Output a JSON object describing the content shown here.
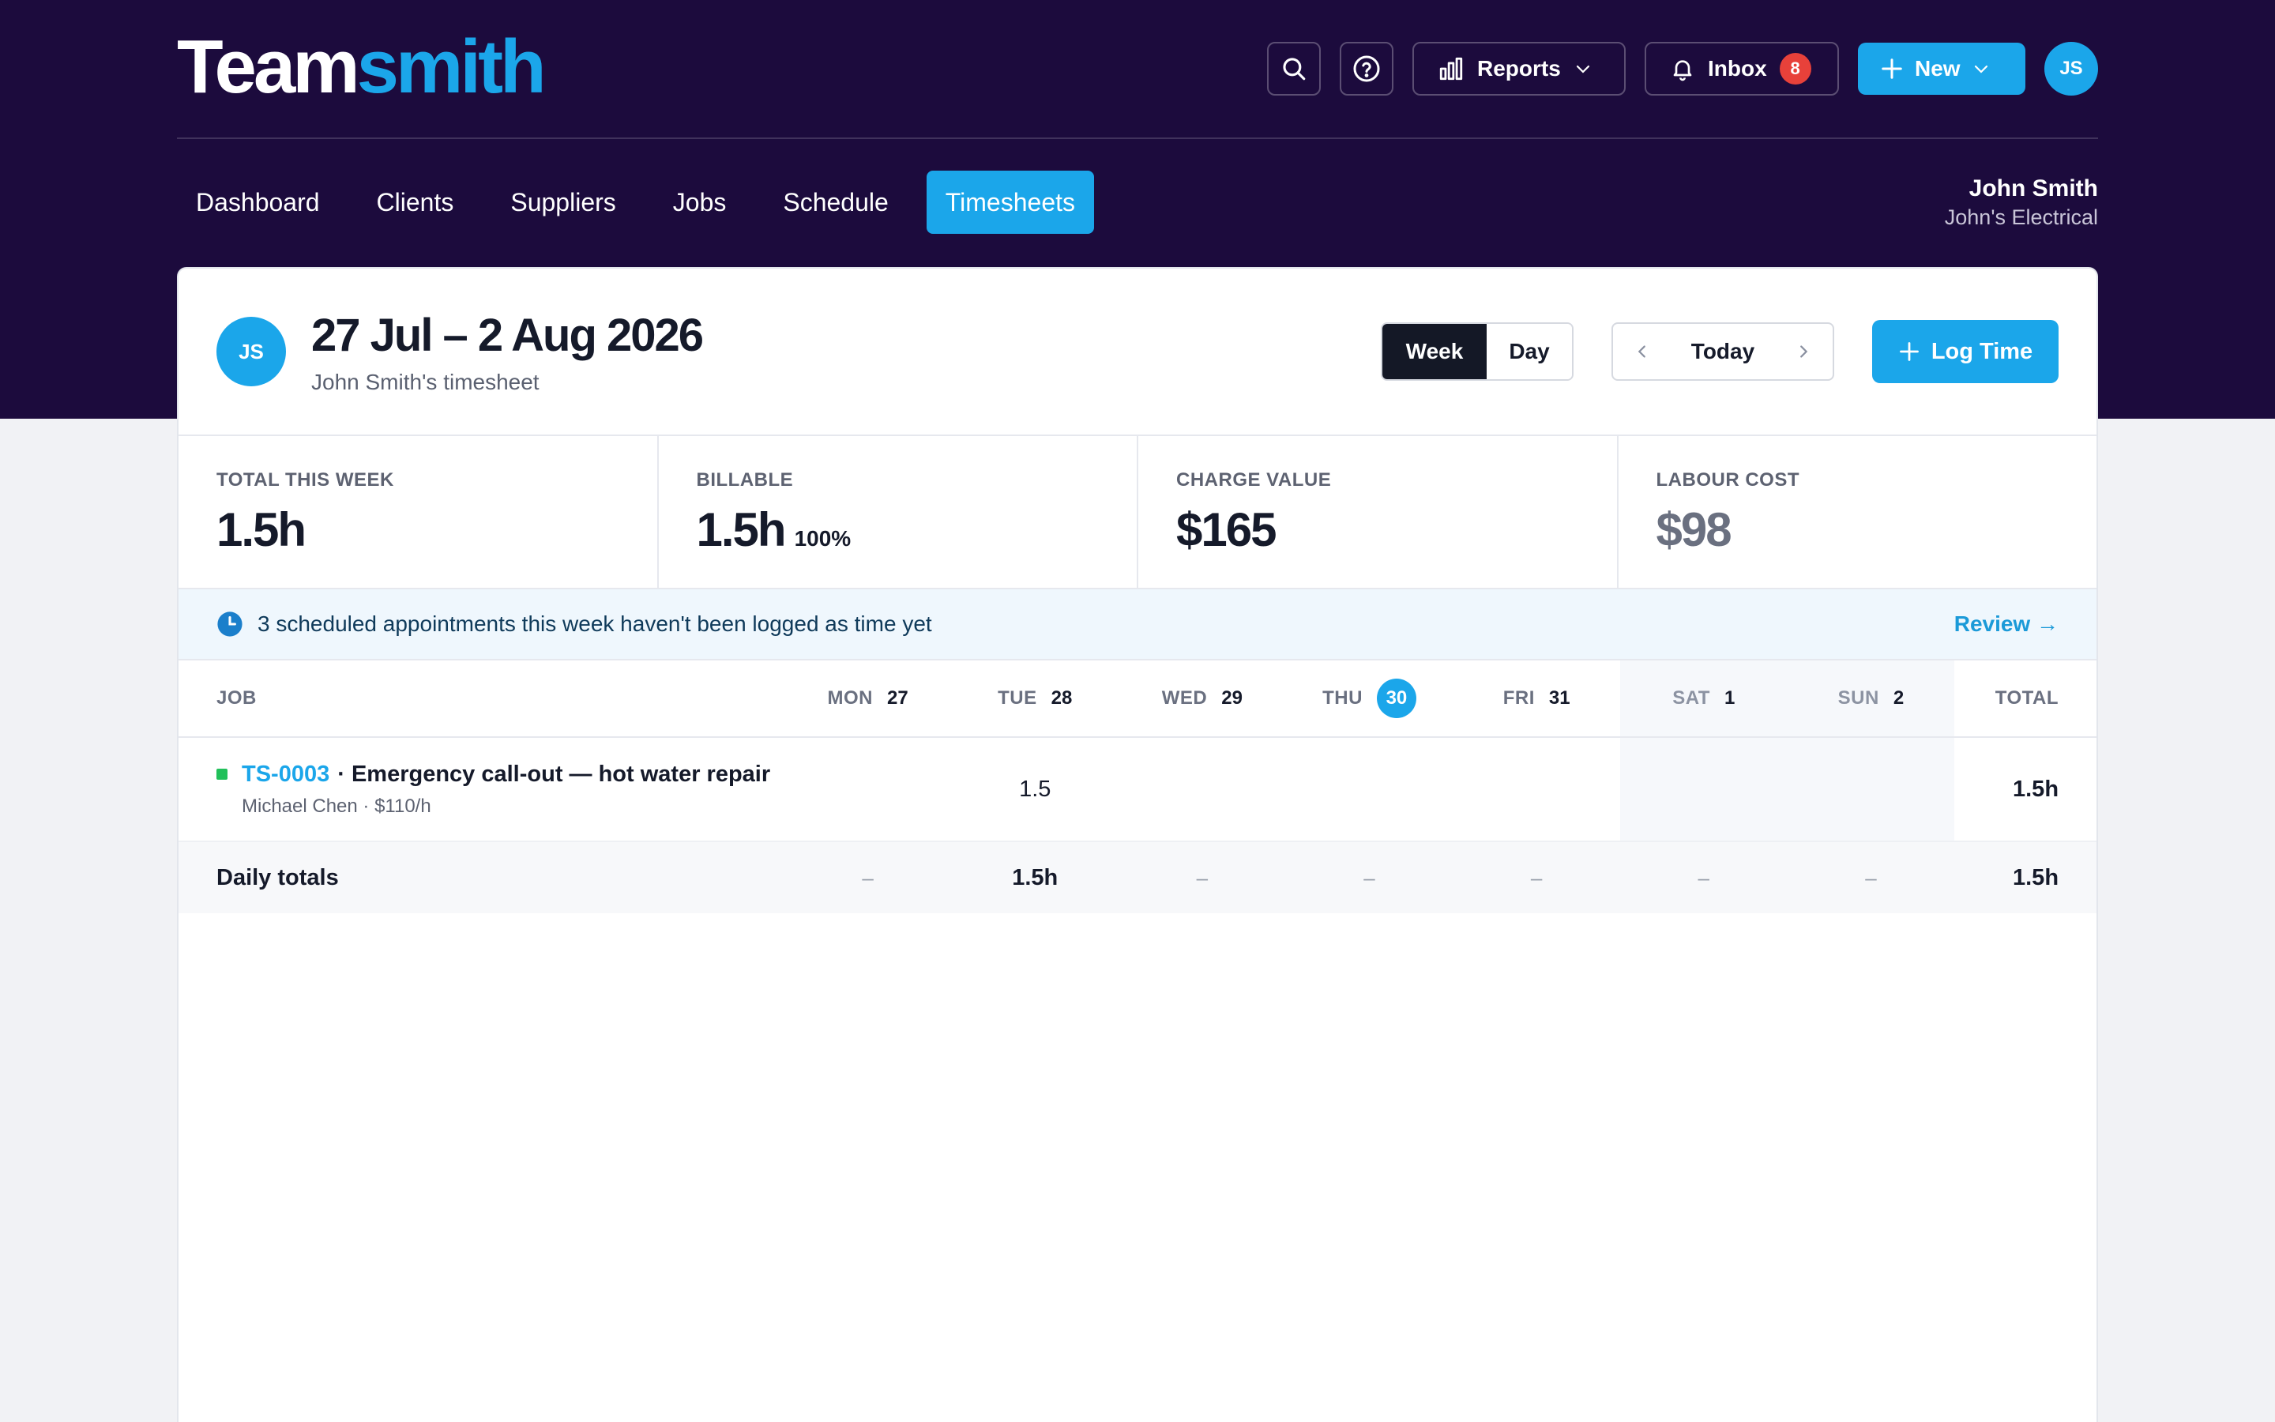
{
  "brand": {
    "part1": "Team",
    "part2": "smith"
  },
  "topbar": {
    "reports_label": "Reports",
    "inbox_label": "Inbox",
    "inbox_count": "8",
    "new_label": "New",
    "avatar_initials": "JS"
  },
  "nav": {
    "tabs": [
      "Dashboard",
      "Clients",
      "Suppliers",
      "Jobs",
      "Schedule",
      "Timesheets"
    ],
    "active": "Timesheets"
  },
  "user": {
    "name": "John Smith",
    "company": "John's Electrical"
  },
  "timesheet": {
    "avatar_initials": "JS",
    "title": "27 Jul – 2 Aug 2026",
    "subtitle": "John Smith's timesheet",
    "view_week": "Week",
    "view_day": "Day",
    "today_label": "Today",
    "log_label": "Log Time"
  },
  "stats": [
    {
      "label": "TOTAL THIS WEEK",
      "value": "1.5h",
      "extra": ""
    },
    {
      "label": "BILLABLE",
      "value": "1.5h",
      "extra": "100%"
    },
    {
      "label": "CHARGE VALUE",
      "value": "$165",
      "extra": ""
    },
    {
      "label": "LABOUR COST",
      "value": "$98",
      "extra": ""
    }
  ],
  "alert": {
    "message": "3 scheduled appointments this week haven't been logged as time yet",
    "action": "Review →"
  },
  "grid": {
    "job_header": "JOB",
    "total_header": "TOTAL",
    "days": [
      {
        "name": "MON",
        "num": "27"
      },
      {
        "name": "TUE",
        "num": "28"
      },
      {
        "name": "WED",
        "num": "29"
      },
      {
        "name": "THU",
        "num": "30"
      },
      {
        "name": "FRI",
        "num": "31"
      },
      {
        "name": "SAT",
        "num": "1"
      },
      {
        "name": "SUN",
        "num": "2"
      }
    ],
    "rows": [
      {
        "code": "TS-0003",
        "desc": "· Emergency call-out — hot water repair",
        "meta": "Michael Chen · $110/h",
        "cells": [
          "",
          "1.5",
          "",
          "",
          "",
          "",
          ""
        ],
        "total": "1.5h"
      }
    ],
    "totals": {
      "label": "Daily totals",
      "cells": [
        "–",
        "1.5h",
        "–",
        "–",
        "–",
        "–",
        "–"
      ],
      "total": "1.5h"
    }
  }
}
